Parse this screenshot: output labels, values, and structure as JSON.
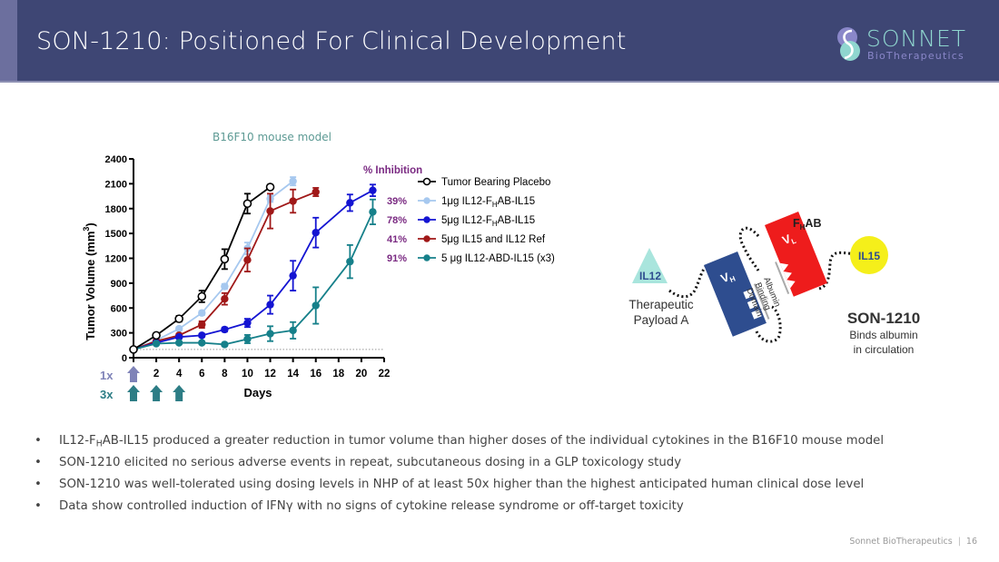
{
  "header": {
    "title": "SON-1210: Positioned For Clinical Development",
    "logo_word": "SONNET",
    "logo_sub": "BioTherapeutics",
    "bg_color": "#3e4674"
  },
  "model_label": "B16F10 mouse model",
  "chart_data": {
    "type": "line",
    "title": "",
    "xlabel": "Days",
    "ylabel": "Tumor Volume (mm³)",
    "ylabel_main": "Tumor Volume (mm",
    "ylabel_sup": "3",
    "ylabel_close": ")",
    "xlim": [
      0,
      22
    ],
    "ylim": [
      0,
      2400
    ],
    "xticks": [
      2,
      4,
      6,
      8,
      10,
      12,
      14,
      16,
      18,
      20,
      22
    ],
    "xtick_labels": [
      "2",
      "4",
      "6",
      "8",
      "10",
      "12",
      "14",
      "16",
      "18",
      "20",
      "22"
    ],
    "yticks": [
      0,
      300,
      600,
      900,
      1200,
      1500,
      1800,
      2100,
      2400
    ],
    "ytick_labels": [
      "0",
      "300",
      "600",
      "900",
      "1200",
      "1500",
      "1800",
      "2100",
      "2400"
    ],
    "baseline_reference": 100,
    "grid": false,
    "legend_position": "top-right",
    "inhibition_header": "% Inhibition",
    "series": [
      {
        "name": "Tumor Bearing Placebo",
        "legend_main": "Tumor Bearing Placebo",
        "legend_sub": "",
        "legend_tail": "",
        "inhibition": "",
        "color": "#000000",
        "marker": "open-circle",
        "x": [
          0,
          2,
          4,
          6,
          8,
          10,
          12
        ],
        "y": [
          100,
          270,
          470,
          740,
          1190,
          1860,
          2060
        ],
        "err": [
          10,
          20,
          35,
          70,
          120,
          120,
          25
        ]
      },
      {
        "name": "1μg IL12-FHAB-IL15",
        "legend_main": "1μg  IL12-F",
        "legend_sub": "H",
        "legend_tail": "AB-IL15",
        "inhibition": "39%",
        "color": "#a6c8ef",
        "marker": "filled-circle",
        "x": [
          0,
          2,
          4,
          6,
          8,
          10,
          12,
          14
        ],
        "y": [
          100,
          210,
          350,
          540,
          860,
          1320,
          1920,
          2130
        ],
        "err": [
          10,
          15,
          20,
          25,
          30,
          70,
          40,
          50
        ]
      },
      {
        "name": "5μg IL12-FHAB-IL15",
        "legend_main": "5μg IL12-F",
        "legend_sub": "H",
        "legend_tail": "AB-IL15",
        "inhibition": "78%",
        "color": "#1414d2",
        "marker": "filled-circle",
        "x": [
          0,
          2,
          4,
          6,
          8,
          10,
          12,
          14,
          16,
          19,
          21
        ],
        "y": [
          100,
          180,
          250,
          270,
          340,
          420,
          640,
          990,
          1510,
          1870,
          2020
        ],
        "err": [
          10,
          15,
          20,
          20,
          25,
          50,
          110,
          180,
          180,
          100,
          70
        ]
      },
      {
        "name": "5μg IL15 and IL12 Ref",
        "legend_main": "5μg IL15  and IL12 Ref",
        "legend_sub": "",
        "legend_tail": "",
        "inhibition": "41%",
        "color": "#a01818",
        "marker": "filled-circle",
        "x": [
          0,
          2,
          4,
          6,
          8,
          10,
          12,
          14,
          16
        ],
        "y": [
          100,
          200,
          270,
          400,
          710,
          1180,
          1770,
          1890,
          2000
        ],
        "err": [
          10,
          15,
          20,
          40,
          70,
          140,
          210,
          140,
          50
        ]
      },
      {
        "name": "5 μg IL12-ABD-IL15 (x3)",
        "legend_main": "5 μg IL12-ABD-IL15 (x3)",
        "legend_sub": "",
        "legend_tail": "",
        "inhibition": "91%",
        "color": "#16808a",
        "marker": "filled-circle",
        "x": [
          0,
          2,
          4,
          6,
          8,
          10,
          12,
          14,
          16,
          19,
          21
        ],
        "y": [
          100,
          170,
          180,
          180,
          160,
          225,
          290,
          330,
          630,
          1160,
          1760
        ],
        "err": [
          10,
          15,
          15,
          15,
          15,
          50,
          90,
          100,
          220,
          200,
          150
        ]
      }
    ],
    "dosing": {
      "once_label": "1x",
      "thrice_label": "3x",
      "once_days": [
        0
      ],
      "thrice_days": [
        0,
        2,
        4
      ],
      "once_color": "#7f83b8",
      "thrice_color": "#2d7d85"
    }
  },
  "diagram": {
    "il12_label": "IL12",
    "payload_label_line1": "Therapeutic",
    "payload_label_line2": "Payload A",
    "vh_label": "V",
    "vh_sub": "H",
    "vl_label": "V",
    "vl_sub": "L",
    "fhab_main": "F",
    "fhab_sub": "H",
    "fhab_tail": "AB",
    "abd_line1": "Albumin",
    "abd_line2": "Binding",
    "abd_line3": "Domain",
    "il15_label": "IL15",
    "product_name": "SON-1210",
    "product_desc_line1": "Binds albumin",
    "product_desc_line2": "in circulation",
    "colors": {
      "il12": "#a9e5dd",
      "vh": "#2e4d8f",
      "vl": "#ee1c1c",
      "il15": "#f5ef1a"
    }
  },
  "bullets": [
    {
      "pre": "IL12-F",
      "sub": "H",
      "post": "AB-IL15 produced a greater reduction in tumor volume than higher doses of the individual cytokines in the B16F10 mouse model"
    },
    {
      "pre": "SON-1210 elicited no serious adverse events in repeat, subcutaneous dosing in a GLP toxicology study",
      "sub": "",
      "post": ""
    },
    {
      "pre": "SON-1210 was well-tolerated using dosing levels in NHP of at least 50x higher than the highest anticipated human clinical dose level",
      "sub": "",
      "post": ""
    },
    {
      "pre": "Data show controlled induction of IFNγ with no signs of cytokine release syndrome or off-target toxicity",
      "sub": "",
      "post": ""
    }
  ],
  "bullet_glyph": "•",
  "footer": {
    "company": "Sonnet BioTherapeutics",
    "separator": "|",
    "page": "16"
  }
}
